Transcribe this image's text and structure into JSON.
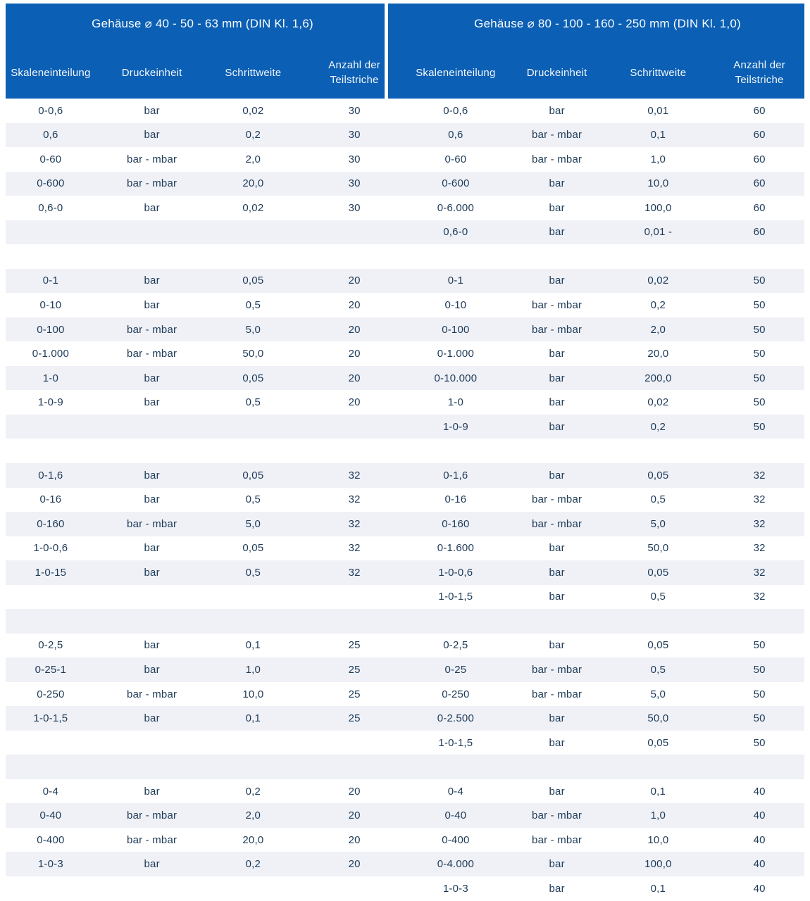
{
  "colors": {
    "accent_blue": "#0b5fb4",
    "stripe": "#eff1f7",
    "body_text": "#1e3a57",
    "header_text": "#ffffff"
  },
  "tables": [
    {
      "title": "Gehäuse ⌀ 40 - 50 - 63 mm (DIN Kl. 1,6)",
      "columns": [
        "Skaleneinteilung",
        "Druckeinheit",
        "Schrittweite",
        "Anzahl der Teilstriche"
      ]
    },
    {
      "title": "Gehäuse ⌀ 80 - 100 - 160 - 250 mm (DIN Kl. 1,0)",
      "columns": [
        "Skaleneinteilung",
        "Druckeinheit",
        "Schrittweite",
        "Anzahl der Teilstriche"
      ]
    }
  ],
  "rows": [
    {
      "left": [
        "0-0,6",
        "bar",
        "0,02",
        "30"
      ],
      "right": [
        "0-0,6",
        "bar",
        "0,01",
        "60"
      ]
    },
    {
      "left": [
        "0,6",
        "bar",
        "0,2",
        "30"
      ],
      "right": [
        "0,6",
        "bar - mbar",
        "0,1",
        "60"
      ]
    },
    {
      "left": [
        "0-60",
        "bar - mbar",
        "2,0",
        "30"
      ],
      "right": [
        "0-60",
        "bar - mbar",
        "1,0",
        "60"
      ]
    },
    {
      "left": [
        "0-600",
        "bar - mbar",
        "20,0",
        "30"
      ],
      "right": [
        "0-600",
        "bar",
        "10,0",
        "60"
      ]
    },
    {
      "left": [
        "0,6-0",
        "bar",
        "0,02",
        "30"
      ],
      "right": [
        "0-6.000",
        "bar",
        "100,0",
        "60"
      ]
    },
    {
      "left": [
        "",
        "",
        "",
        ""
      ],
      "right": [
        "0,6-0",
        "bar",
        "0,01 -",
        "60"
      ]
    },
    {
      "left": [
        "",
        "",
        "",
        ""
      ],
      "right": [
        "",
        "",
        "",
        ""
      ]
    },
    {
      "left": [
        "0-1",
        "bar",
        "0,05",
        "20"
      ],
      "right": [
        "0-1",
        "bar",
        "0,02",
        "50"
      ]
    },
    {
      "left": [
        "0-10",
        "bar",
        "0,5",
        "20"
      ],
      "right": [
        "0-10",
        "bar - mbar",
        "0,2",
        "50"
      ]
    },
    {
      "left": [
        "0-100",
        "bar - mbar",
        "5,0",
        "20"
      ],
      "right": [
        "0-100",
        "bar - mbar",
        "2,0",
        "50"
      ]
    },
    {
      "left": [
        "0-1.000",
        "bar - mbar",
        "50,0",
        "20"
      ],
      "right": [
        "0-1.000",
        "bar",
        "20,0",
        "50"
      ]
    },
    {
      "left": [
        "1-0",
        "bar",
        "0,05",
        "20"
      ],
      "right": [
        "0-10.000",
        "bar",
        "200,0",
        "50"
      ]
    },
    {
      "left": [
        "1-0-9",
        "bar",
        "0,5",
        "20"
      ],
      "right": [
        "1-0",
        "bar",
        "0,02",
        "50"
      ]
    },
    {
      "left": [
        "",
        "",
        "",
        ""
      ],
      "right": [
        "1-0-9",
        "bar",
        "0,2",
        "50"
      ]
    },
    {
      "left": [
        "",
        "",
        "",
        ""
      ],
      "right": [
        "",
        "",
        "",
        ""
      ]
    },
    {
      "left": [
        "0-1,6",
        "bar",
        "0,05",
        "32"
      ],
      "right": [
        "0-1,6",
        "bar",
        "0,05",
        "32"
      ]
    },
    {
      "left": [
        "0-16",
        "bar",
        "0,5",
        "32"
      ],
      "right": [
        "0-16",
        "bar - mbar",
        "0,5",
        "32"
      ]
    },
    {
      "left": [
        "0-160",
        "bar - mbar",
        "5,0",
        "32"
      ],
      "right": [
        "0-160",
        "bar - mbar",
        "5,0",
        "32"
      ]
    },
    {
      "left": [
        "1-0-0,6",
        "bar",
        "0,05",
        "32"
      ],
      "right": [
        "0-1.600",
        "bar",
        "50,0",
        "32"
      ]
    },
    {
      "left": [
        "1-0-15",
        "bar",
        "0,5",
        "32"
      ],
      "right": [
        "1-0-0,6",
        "bar",
        "0,05",
        "32"
      ]
    },
    {
      "left": [
        "",
        "",
        "",
        ""
      ],
      "right": [
        "1-0-1,5",
        "bar",
        "0,5",
        "32"
      ]
    },
    {
      "left": [
        "",
        "",
        "",
        ""
      ],
      "right": [
        "",
        "",
        "",
        ""
      ]
    },
    {
      "left": [
        "0-2,5",
        "bar",
        "0,1",
        "25"
      ],
      "right": [
        "0-2,5",
        "bar",
        "0,05",
        "50"
      ]
    },
    {
      "left": [
        "0-25-1",
        "bar",
        "1,0",
        "25"
      ],
      "right": [
        "0-25",
        "bar - mbar",
        "0,5",
        "50"
      ]
    },
    {
      "left": [
        "0-250",
        "bar - mbar",
        "10,0",
        "25"
      ],
      "right": [
        "0-250",
        "bar - mbar",
        "5,0",
        "50"
      ]
    },
    {
      "left": [
        "1-0-1,5",
        "bar",
        "0,1",
        "25"
      ],
      "right": [
        "0-2.500",
        "bar",
        "50,0",
        "50"
      ]
    },
    {
      "left": [
        "",
        "",
        "",
        ""
      ],
      "right": [
        "1-0-1,5",
        "bar",
        "0,05",
        "50"
      ]
    },
    {
      "left": [
        "",
        "",
        "",
        ""
      ],
      "right": [
        "",
        "",
        "",
        ""
      ]
    },
    {
      "left": [
        "0-4",
        "bar",
        "0,2",
        "20"
      ],
      "right": [
        "0-4",
        "bar",
        "0,1",
        "40"
      ]
    },
    {
      "left": [
        "0-40",
        "bar - mbar",
        "2,0",
        "20"
      ],
      "right": [
        "0-40",
        "bar - mbar",
        "1,0",
        "40"
      ]
    },
    {
      "left": [
        "0-400",
        "bar - mbar",
        "20,0",
        "20"
      ],
      "right": [
        "0-400",
        "bar - mbar",
        "10,0",
        "40"
      ]
    },
    {
      "left": [
        "1-0-3",
        "bar",
        "0,2",
        "20"
      ],
      "right": [
        "0-4.000",
        "bar",
        "100,0",
        "40"
      ]
    },
    {
      "left": [
        "",
        "",
        "",
        ""
      ],
      "right": [
        "1-0-3",
        "bar",
        "0,1",
        "40"
      ]
    }
  ]
}
